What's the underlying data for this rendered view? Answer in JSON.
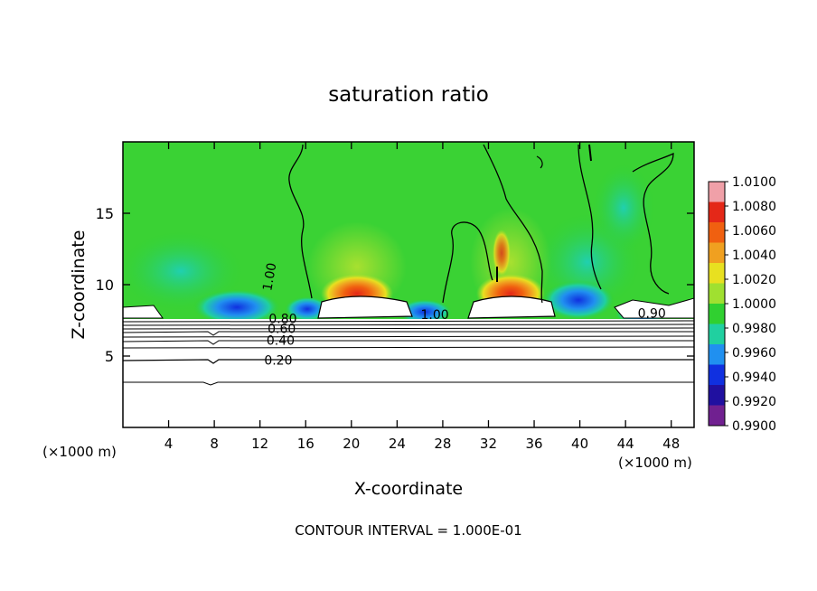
{
  "chart_data": {
    "type": "heatmap",
    "title": "saturation ratio",
    "xlabel": "X-coordinate",
    "ylabel": "Z-coordinate",
    "x_unit": "(×1000 m)",
    "x_unit_right": "(×1000 m)",
    "xlim": [
      0,
      50
    ],
    "ylim": [
      0,
      20
    ],
    "x_ticks": [
      4,
      8,
      12,
      16,
      20,
      24,
      28,
      32,
      36,
      40,
      44,
      48
    ],
    "y_ticks": [
      5,
      10,
      15
    ],
    "colorbar": {
      "labels": [
        "1.0100",
        "1.0080",
        "1.0060",
        "1.0040",
        "1.0020",
        "1.0000",
        "0.9980",
        "0.9960",
        "0.9940",
        "0.9920",
        "0.9900"
      ],
      "colors": [
        "#f0a0a8",
        "#e42818",
        "#f06010",
        "#f0a020",
        "#e8e020",
        "#a0e030",
        "#30d030",
        "#20d0a0",
        "#2090f0",
        "#1030e0",
        "#2010a0",
        "#702090"
      ]
    },
    "contour_labels": [
      {
        "text": "1.00",
        "x": 13.2,
        "y": 10.5,
        "rotate": -80
      },
      {
        "text": "1.00",
        "x": 27.3,
        "y": 7.6
      },
      {
        "text": "0.90",
        "x": 46.3,
        "y": 7.7
      },
      {
        "text": "0.80",
        "x": 14.0,
        "y": 7.3
      },
      {
        "text": "0.60",
        "x": 13.9,
        "y": 6.6
      },
      {
        "text": "0.40",
        "x": 13.8,
        "y": 5.8
      },
      {
        "text": "0.20",
        "x": 13.6,
        "y": 4.4
      }
    ],
    "contour_interval_label": "CONTOUR INTERVAL = 1.000E-01"
  }
}
